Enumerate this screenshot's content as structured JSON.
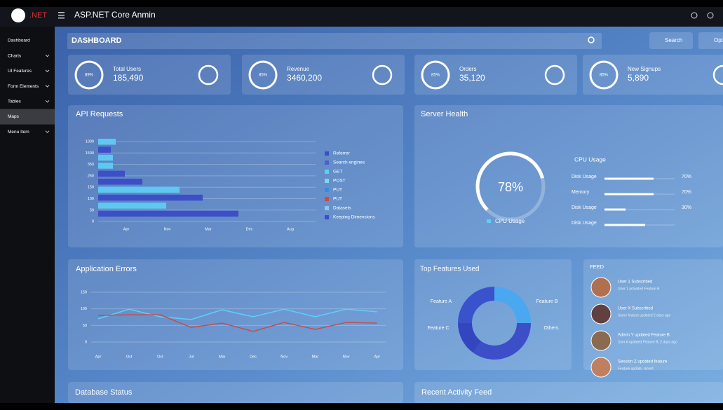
{
  "app": {
    "logo": ".NET",
    "title": "ASP.NET Core Anmin"
  },
  "sidebar": [
    {
      "label": "Dashboard",
      "expandable": false
    },
    {
      "label": "Charts",
      "expandable": true
    },
    {
      "label": "UI Features",
      "expandable": true
    },
    {
      "label": "Form Elements",
      "expandable": true
    },
    {
      "label": "Tables",
      "expandable": true
    },
    {
      "label": "Maps",
      "expandable": false,
      "active": true
    },
    {
      "label": "Menu Item",
      "expandable": true
    }
  ],
  "page_title": "DASHBOARD",
  "buttons": [
    "Search",
    "Options"
  ],
  "stats": [
    {
      "label": "Total Users",
      "value": "185,490",
      "badge": "89%"
    },
    {
      "label": "Revenue",
      "value": "3460,200",
      "badge": "85%"
    },
    {
      "label": "Orders",
      "value": "35,120",
      "badge": "85%"
    },
    {
      "label": "New Signups",
      "value": "5,890",
      "badge": "85%"
    }
  ],
  "api_requests": {
    "type": "bar",
    "title": "API Requests",
    "ylabels": [
      "1000",
      "1500",
      "350",
      "250",
      "150",
      "100",
      "50",
      "0"
    ],
    "xlabels": [
      "Apr",
      "Nov",
      "Mar",
      "Dec",
      "Aug"
    ],
    "xlim": [
      0,
      320
    ],
    "values": [
      25,
      18,
      21,
      21,
      38,
      63,
      116,
      149,
      97,
      200
    ],
    "colors": [
      "#5fc8f2",
      "#3c4fc8",
      "#5fc8f2",
      "#5fc8f2",
      "#3c4fc8",
      "#3c4fc8",
      "#5fc8f2",
      "#3c4fc8",
      "#5fc8f2",
      "#3c4fc8"
    ],
    "legend": [
      {
        "name": "Referrer",
        "color": "#3c4fc8"
      },
      {
        "name": "Search engines",
        "color": "#4a5fd6"
      },
      {
        "name": "GET",
        "color": "#5fd0f2"
      },
      {
        "name": "POST",
        "color": "#7ad8f5"
      },
      {
        "name": "PUT",
        "color": "#3a8ae0"
      },
      {
        "name": "PUT",
        "color": "#d04848"
      },
      {
        "name": "Datasets",
        "color": "#8cc8e8"
      },
      {
        "name": "Keeping Dimensions",
        "color": "#3c4fc8"
      }
    ]
  },
  "server_health": {
    "title": "Server Health",
    "gauge": {
      "value": 78,
      "label": "78%",
      "caption": "CPU Usage"
    },
    "heading": "CPU Usage",
    "rows": [
      {
        "label": "Disk Usage",
        "value": 70,
        "value_label": "70%"
      },
      {
        "label": "Memory",
        "value": 70,
        "value_label": "70%"
      },
      {
        "label": "Disk Usage",
        "value": 30,
        "value_label": "30%"
      },
      {
        "label": "Disk Usage",
        "value": 58
      }
    ]
  },
  "application_errors": {
    "type": "line",
    "title": "Application Errors",
    "categories": [
      "Apr",
      "Oct",
      "Oct",
      "Jul",
      "Mar",
      "Dec",
      "Nov",
      "Mar",
      "Nov",
      "Apr"
    ],
    "ylim": [
      0,
      150
    ],
    "yticks": [
      0,
      50,
      100,
      150
    ],
    "series": [
      {
        "color": "#5fd0f2",
        "values": [
          70,
          99,
          76,
          68,
          97,
          76,
          99,
          76,
          99,
          91
        ]
      },
      {
        "color": "#c0504d",
        "values": [
          80,
          82,
          82,
          44,
          57,
          32,
          59,
          38,
          59,
          57
        ]
      }
    ]
  },
  "top_features": {
    "type": "pie",
    "title": "Top Features Used",
    "labels": [
      "Feature A",
      "Feature B",
      "Feature C",
      "Others"
    ],
    "values": [
      25,
      35,
      15,
      25
    ],
    "colors": [
      "#4aa8f0",
      "#3c4fc8",
      "#3346c0",
      "#3a52cc"
    ]
  },
  "feed": {
    "title": "FEED",
    "items": [
      {
        "title": "User 1 Subscribed",
        "text": "User 1 activated Feature B",
        "color": "#b07050"
      },
      {
        "title": "User X Subscribed",
        "text": "Some feature updated 2 days ago",
        "color": "#604040"
      },
      {
        "title": "Admin Y updated Feature B",
        "text": "User A updated Feature B, 2 days ago",
        "color": "#8a6a50"
      },
      {
        "title": "Session Z updated feature",
        "text": "Feature update, recent",
        "color": "#c08060"
      }
    ]
  },
  "bottom_cards": [
    "Database Status",
    "Recent Activity Feed"
  ]
}
